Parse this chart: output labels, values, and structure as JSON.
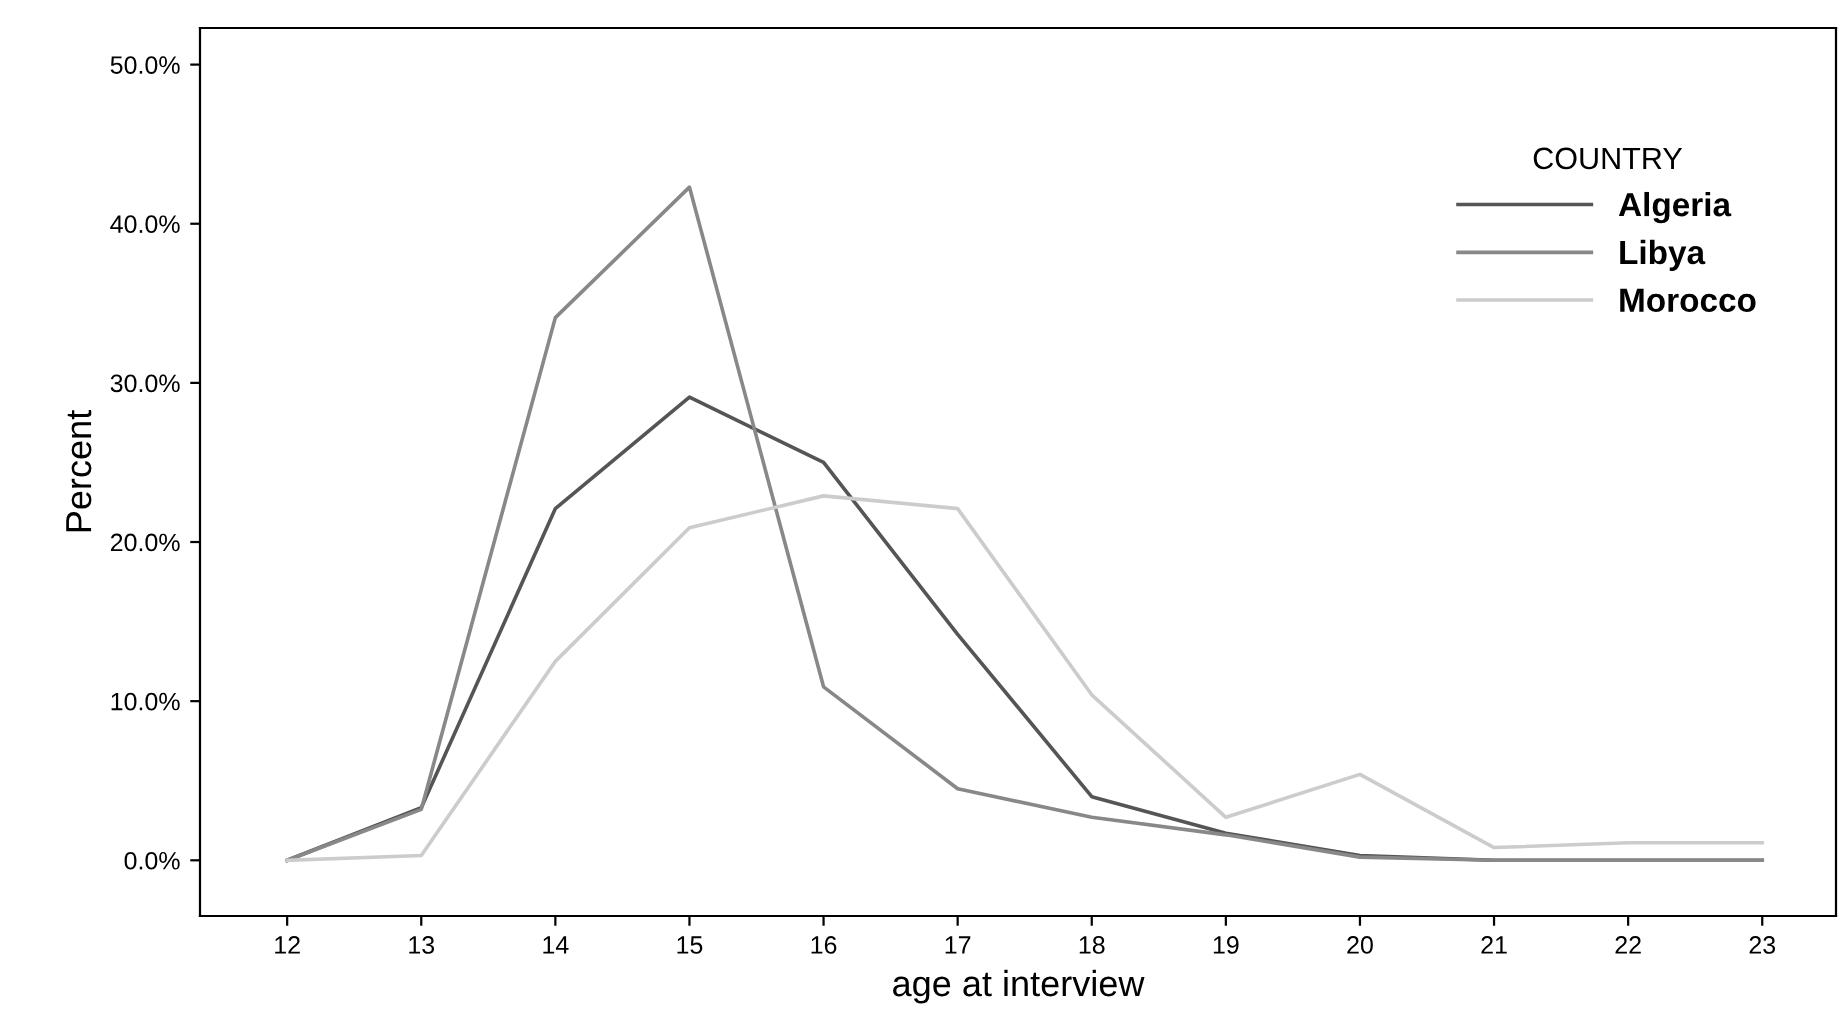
{
  "chart_data": {
    "type": "line",
    "xlabel": "age at interview",
    "ylabel": "Percent",
    "legend_title": "COUNTRY",
    "x": [
      12,
      13,
      14,
      15,
      16,
      17,
      18,
      19,
      20,
      21,
      22,
      23
    ],
    "series": [
      {
        "name": "Algeria",
        "color": "#555555",
        "values": [
          0,
          3.3,
          22.1,
          29.1,
          25.0,
          14.2,
          4.0,
          1.7,
          0.3,
          0,
          0,
          0
        ]
      },
      {
        "name": "Libya",
        "color": "#888888",
        "values": [
          0,
          3.2,
          34.1,
          42.3,
          10.9,
          4.5,
          2.7,
          1.6,
          0.2,
          0,
          0,
          0
        ]
      },
      {
        "name": "Morocco",
        "color": "#cccccc",
        "values": [
          0,
          0.3,
          12.5,
          20.9,
          22.9,
          22.1,
          10.4,
          2.7,
          5.4,
          0.8,
          1.1,
          1.1
        ]
      }
    ],
    "xlim": [
      11.35,
      23.55
    ],
    "ylim": [
      -3.5,
      52.3
    ],
    "xticks": [
      12,
      13,
      14,
      15,
      16,
      17,
      18,
      19,
      20,
      21,
      22,
      23
    ],
    "yticks": [
      {
        "value": 0,
        "label": "0.0%"
      },
      {
        "value": 10,
        "label": "10.0%"
      },
      {
        "value": 20,
        "label": "20.0%"
      },
      {
        "value": 30,
        "label": "30.0%"
      },
      {
        "value": 40,
        "label": "40.0%"
      },
      {
        "value": 50,
        "label": "50.0%"
      }
    ],
    "grid": false,
    "legend": "top right",
    "marker": "none",
    "line_style": "solid"
  }
}
